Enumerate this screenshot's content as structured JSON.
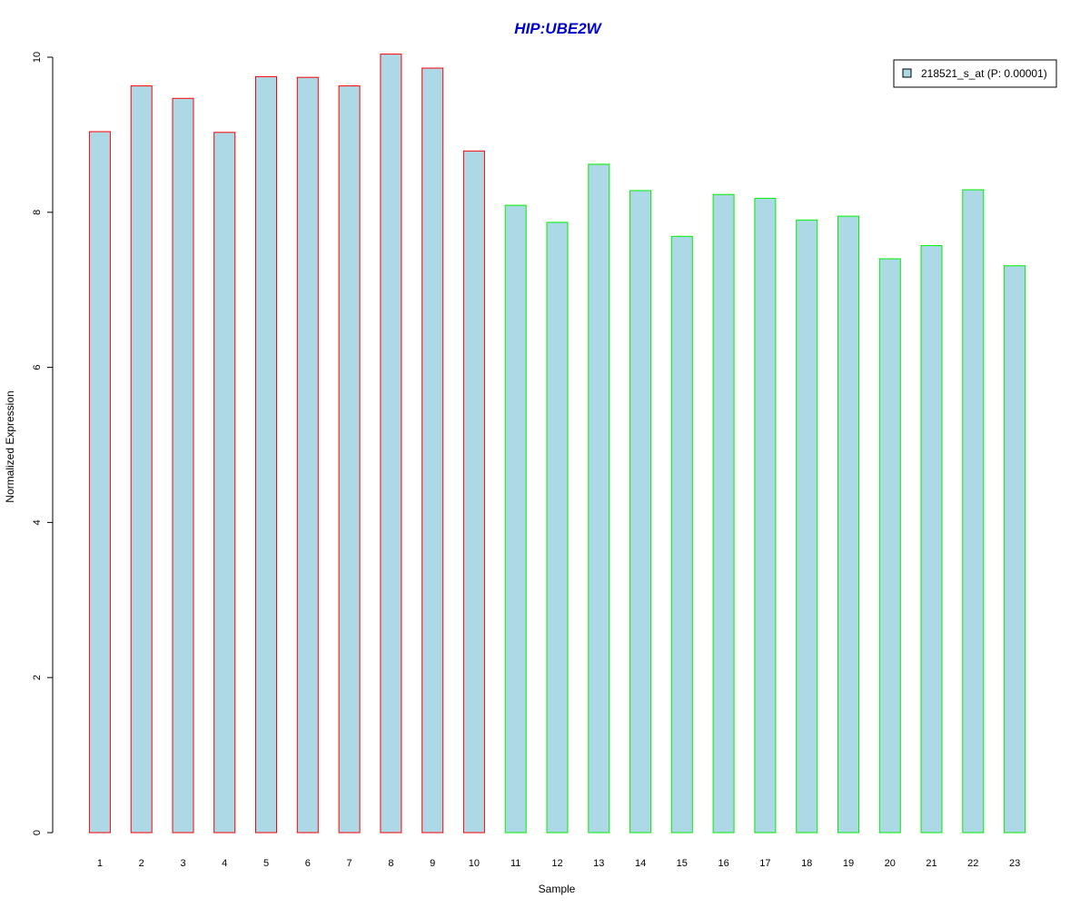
{
  "chart_data": {
    "type": "bar",
    "title": "HIP:UBE2W",
    "xlabel": "Sample",
    "ylabel": "Normalized Expression",
    "ylim": [
      0,
      10
    ],
    "yticks": [
      0,
      2,
      4,
      6,
      8,
      10
    ],
    "categories": [
      "1",
      "2",
      "3",
      "4",
      "5",
      "6",
      "7",
      "8",
      "9",
      "10",
      "11",
      "12",
      "13",
      "14",
      "15",
      "16",
      "17",
      "18",
      "19",
      "20",
      "21",
      "22",
      "23"
    ],
    "values": [
      9.04,
      9.63,
      9.47,
      9.03,
      9.75,
      9.74,
      9.63,
      10.04,
      9.86,
      8.79,
      8.09,
      7.87,
      8.62,
      8.28,
      7.69,
      8.23,
      8.18,
      7.9,
      7.95,
      7.4,
      7.57,
      8.29,
      7.31
    ],
    "group": [
      "a",
      "a",
      "a",
      "a",
      "a",
      "a",
      "a",
      "a",
      "a",
      "a",
      "b",
      "b",
      "b",
      "b",
      "b",
      "b",
      "b",
      "b",
      "b",
      "b",
      "b",
      "b",
      "b"
    ],
    "legend": {
      "label": "218521_s_at (P: 0.00001)",
      "position": "top-right"
    },
    "grid": false
  },
  "colors": {
    "title": "#0000cc",
    "bar_fill": "#add8e6",
    "border_group_a": "#ff0000",
    "border_group_b": "#00ee00",
    "axis": "#000000"
  }
}
